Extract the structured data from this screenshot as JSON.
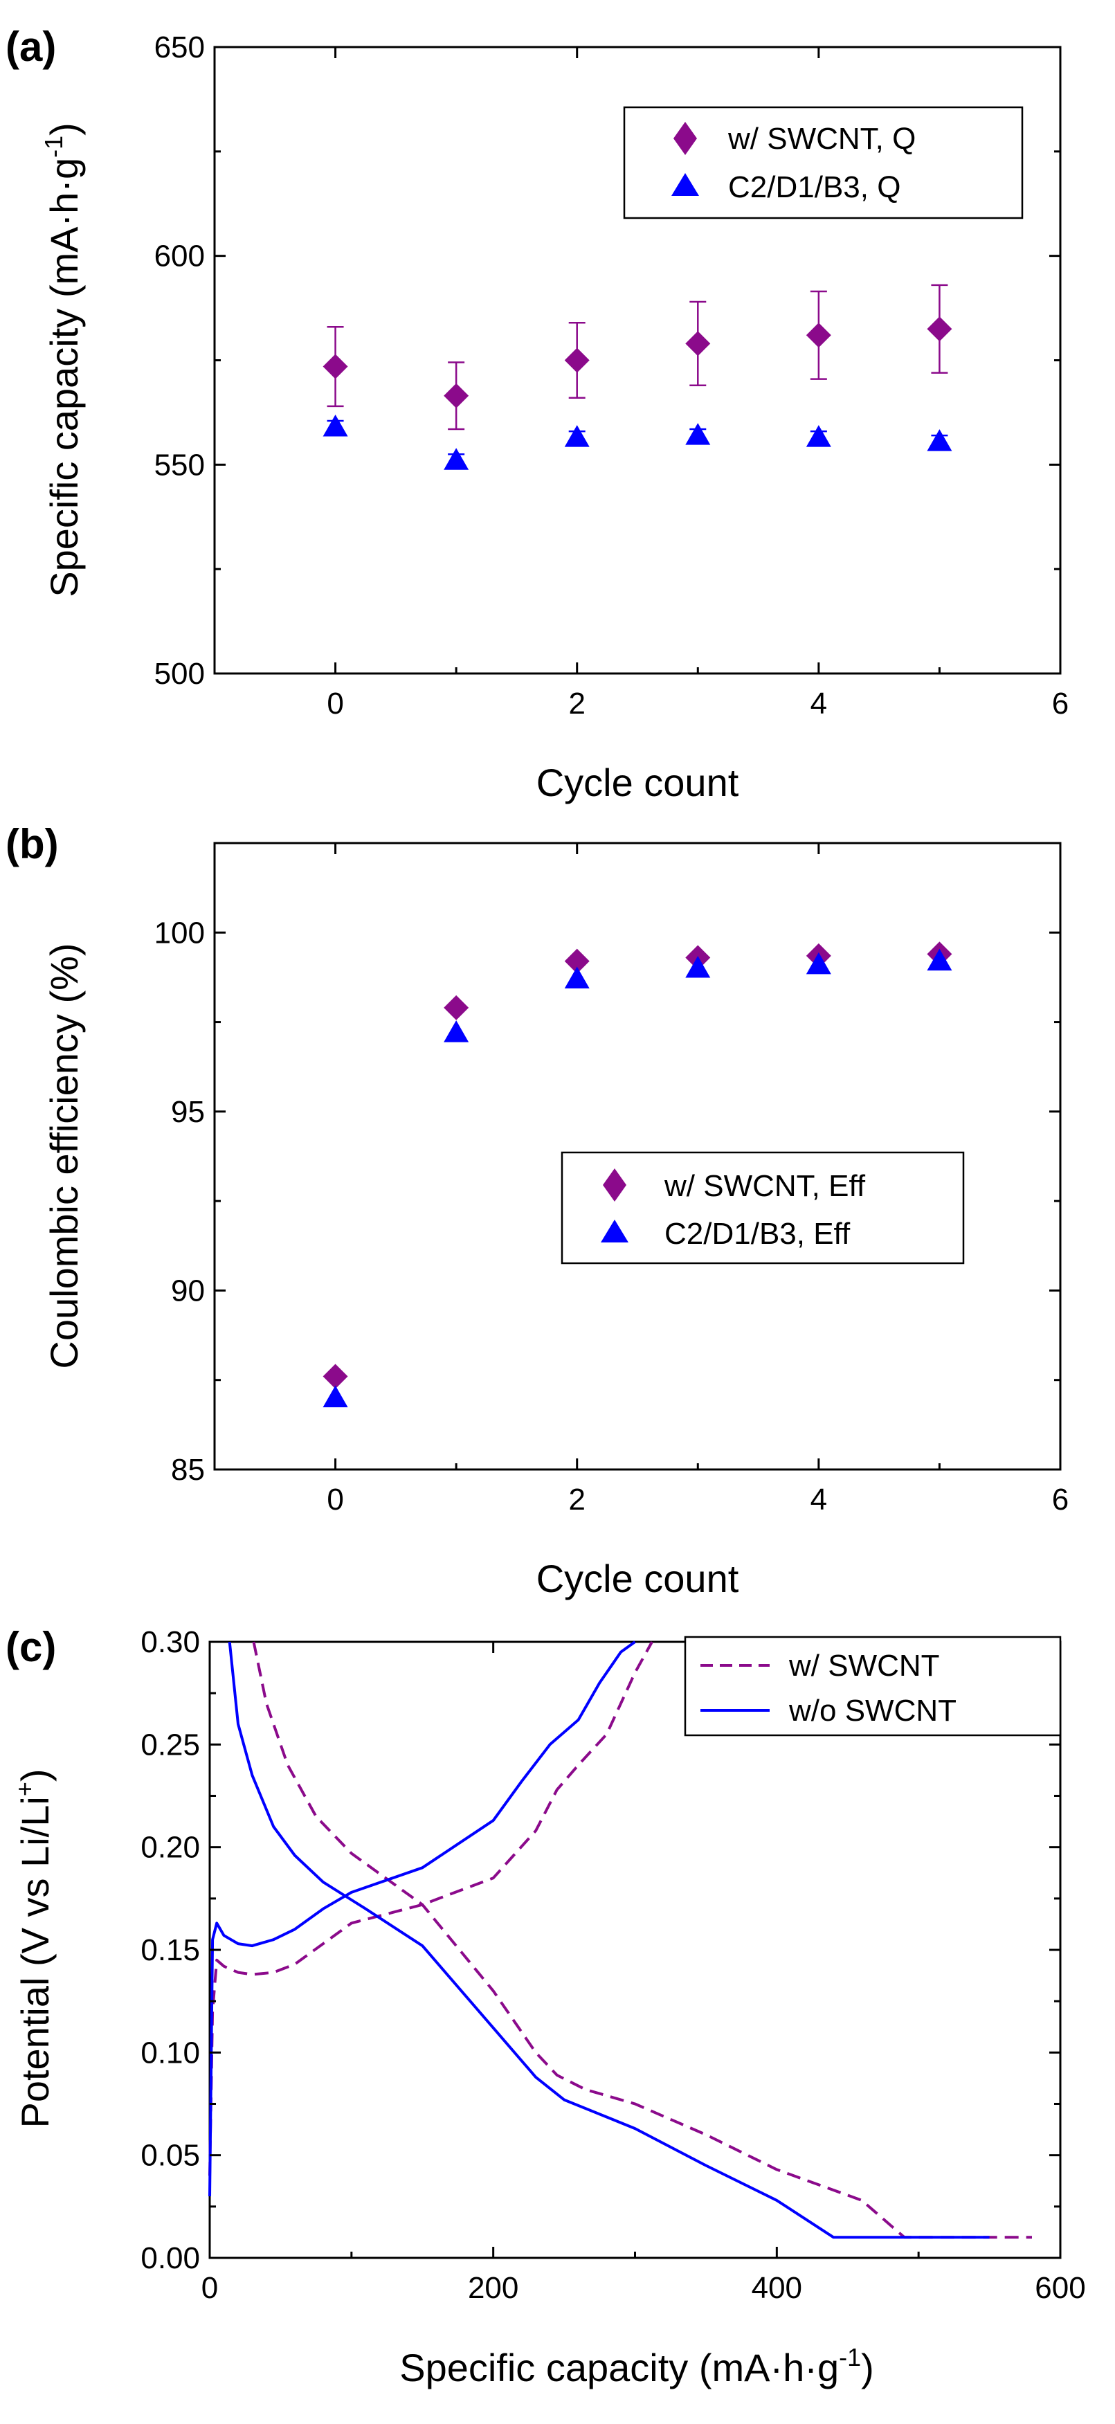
{
  "chart_data": [
    {
      "panel_label": "(a)",
      "type": "scatter",
      "xlabel": "Cycle count",
      "ylabel_main": "Specific capacity (mA·h·g",
      "ylabel_sup": "-1",
      "ylabel_tail": ")",
      "xlim": [
        -1,
        6
      ],
      "ylim": [
        500,
        650
      ],
      "xticks": [
        0,
        2,
        4,
        6
      ],
      "yticks": [
        500,
        550,
        600,
        650
      ],
      "legend_position": "top-right",
      "series": [
        {
          "name": "w/ SWCNT, Q",
          "marker": "diamond",
          "color": "#8b0a8b",
          "x": [
            0,
            1,
            2,
            3,
            4,
            5
          ],
          "y": [
            573.5,
            566.5,
            575,
            579,
            581,
            582.5
          ],
          "yerr": [
            9.5,
            8,
            9,
            10,
            10.5,
            10.5
          ]
        },
        {
          "name": "C2/D1/B3, Q",
          "marker": "triangle",
          "color": "#0000ff",
          "x": [
            0,
            1,
            2,
            3,
            4,
            5
          ],
          "y": [
            559,
            551,
            556.5,
            557,
            556.5,
            555.5
          ],
          "yerr": [
            1.5,
            1.5,
            1.5,
            1.5,
            1.5,
            1.5
          ]
        }
      ]
    },
    {
      "panel_label": "(b)",
      "type": "scatter",
      "xlabel": "Cycle count",
      "ylabel_main": "Coulombic efficiency (%)",
      "xlim": [
        -1,
        6
      ],
      "ylim": [
        85,
        102.5
      ],
      "xticks": [
        0,
        2,
        4,
        6
      ],
      "yticks": [
        85,
        90,
        95,
        100
      ],
      "legend_position": "center-right",
      "series": [
        {
          "name": "w/ SWCNT, Eff",
          "marker": "diamond",
          "color": "#8b0a8b",
          "x": [
            0,
            1,
            2,
            3,
            4,
            5
          ],
          "y": [
            87.6,
            97.9,
            99.2,
            99.3,
            99.35,
            99.4
          ]
        },
        {
          "name": "C2/D1/B3, Eff",
          "marker": "triangle",
          "color": "#0000ff",
          "x": [
            0,
            1,
            2,
            3,
            4,
            5
          ],
          "y": [
            87.0,
            97.2,
            98.7,
            99.0,
            99.1,
            99.2
          ]
        }
      ]
    },
    {
      "panel_label": "(c)",
      "type": "line",
      "xlabel_main": "Specific capacity (mA·h·g",
      "xlabel_sup": "-1",
      "xlabel_tail": ")",
      "ylabel_main": "Potential (V vs Li/Li",
      "ylabel_sup": "+",
      "ylabel_tail": ")",
      "xlim": [
        0,
        600
      ],
      "ylim": [
        0,
        0.3
      ],
      "xticks": [
        0,
        200,
        400,
        600
      ],
      "yticks": [
        0.0,
        0.05,
        0.1,
        0.15,
        0.2,
        0.25,
        0.3
      ],
      "ytick_labels": [
        "0.00",
        "0.05",
        "0.10",
        "0.15",
        "0.20",
        "0.25",
        "0.30"
      ],
      "legend_position": "top-right",
      "series": [
        {
          "name": "w/ SWCNT",
          "style": "dashed",
          "color": "#8b0a8b",
          "segments": [
            {
              "x": [
                31,
                40,
                55,
                75,
                100,
                150,
                200,
                230,
                245,
                265,
                300,
                350,
                400,
                460,
                490,
                520,
                580
              ],
              "y": [
                0.3,
                0.27,
                0.24,
                0.215,
                0.197,
                0.172,
                0.13,
                0.1,
                0.089,
                0.082,
                0.075,
                0.06,
                0.043,
                0.028,
                0.01,
                0.01,
                0.01
              ]
            },
            {
              "x": [
                0,
                2,
                5,
                10,
                20,
                30,
                45,
                60,
                80,
                100,
                150,
                200,
                230,
                245,
                260,
                280,
                300,
                312
              ],
              "y": [
                0.04,
                0.12,
                0.145,
                0.142,
                0.139,
                0.138,
                0.139,
                0.143,
                0.153,
                0.163,
                0.172,
                0.185,
                0.208,
                0.228,
                0.24,
                0.255,
                0.285,
                0.3
              ]
            }
          ]
        },
        {
          "name": "w/o SWCNT",
          "style": "solid",
          "color": "#0000ff",
          "segments": [
            {
              "x": [
                14,
                20,
                30,
                45,
                60,
                80,
                110,
                150,
                200,
                230,
                250,
                300,
                350,
                400,
                440,
                480,
                550
              ],
              "y": [
                0.3,
                0.26,
                0.235,
                0.21,
                0.196,
                0.183,
                0.17,
                0.152,
                0.112,
                0.088,
                0.077,
                0.063,
                0.045,
                0.028,
                0.01,
                0.01,
                0.01
              ]
            },
            {
              "x": [
                0,
                2,
                5,
                10,
                20,
                30,
                45,
                60,
                80,
                100,
                150,
                200,
                220,
                240,
                260,
                275,
                290,
                300
              ],
              "y": [
                0.03,
                0.155,
                0.163,
                0.157,
                0.153,
                0.152,
                0.155,
                0.16,
                0.17,
                0.178,
                0.19,
                0.213,
                0.232,
                0.25,
                0.262,
                0.28,
                0.295,
                0.3
              ]
            }
          ]
        }
      ]
    }
  ]
}
